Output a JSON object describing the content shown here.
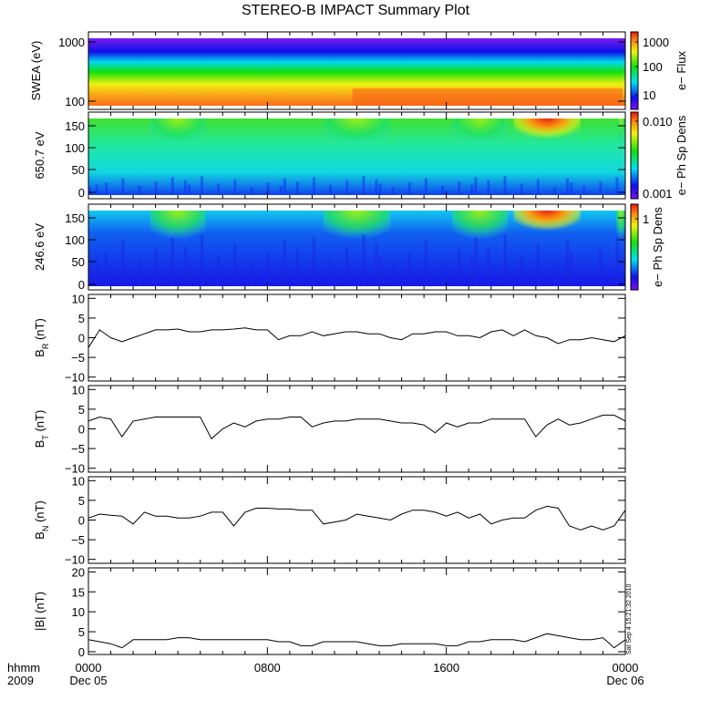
{
  "title": "STEREO-B IMPACT Summary Plot",
  "stamp": "Sat Sep  4 15:21:32 2010",
  "xaxis": {
    "row1_label": "hhmm",
    "row2_label": "2009",
    "ticks": [
      {
        "hour": 0,
        "time": "0000",
        "date": "Dec 05"
      },
      {
        "hour": 8,
        "time": "0800",
        "date": ""
      },
      {
        "hour": 16,
        "time": "1600",
        "date": ""
      },
      {
        "hour": 24,
        "time": "0000",
        "date": "Dec 06"
      }
    ]
  },
  "chart_data": [
    {
      "type": "heatmap",
      "ylabel": "SWEA (eV)",
      "yscale": "log",
      "ylim": [
        90,
        2000
      ],
      "yticks": [
        "1000",
        "100"
      ],
      "colorbar": {
        "label": "e−  Flux",
        "ticks": [
          "1000",
          "100",
          "10"
        ]
      },
      "bands": [
        {
          "level": 0.05,
          "color": "#7a1cf0"
        },
        {
          "level": 0.2,
          "color": "#1010e8"
        },
        {
          "level": 0.35,
          "color": "#00d8f0"
        },
        {
          "level": 0.55,
          "color": "#10e010"
        },
        {
          "level": 0.7,
          "color": "#f0f010"
        },
        {
          "level": 0.85,
          "color": "#f8a018"
        },
        {
          "level": 1.0,
          "color": "#f86018"
        }
      ]
    },
    {
      "type": "heatmap",
      "ylabel": "650.7  eV",
      "ylim": [
        -5,
        180
      ],
      "yticks": [
        "150",
        "100",
        "50",
        "0"
      ],
      "colorbar": {
        "label": "e−  Ph  Sp  Dens",
        "ticks": [
          "0.010",
          "0.001"
        ]
      }
    },
    {
      "type": "heatmap",
      "ylabel": "246.6  eV",
      "ylim": [
        -5,
        180
      ],
      "yticks": [
        "150",
        "100",
        "50",
        "0"
      ],
      "colorbar": {
        "label": "e−  Ph  Sp  Dens",
        "ticks": [
          "1"
        ]
      }
    },
    {
      "type": "line",
      "ylabel_main": "B",
      "ylabel_sub": "R",
      "ylabel_unit": " (nT)",
      "ylim": [
        -11,
        11
      ],
      "yticks": [
        "10",
        "5",
        "0",
        "−5",
        "−10"
      ],
      "ytick_values": [
        10,
        5,
        0,
        -5,
        -10
      ],
      "x_hours_step": 0.5,
      "values": [
        -2.5,
        2,
        0,
        -1,
        0,
        1,
        2,
        2,
        2.2,
        1.5,
        1.5,
        2,
        2,
        2.2,
        2.5,
        2,
        2,
        -0.5,
        0.5,
        0.5,
        1.5,
        0.5,
        1,
        1.5,
        1.5,
        1,
        1,
        0,
        -0.5,
        1,
        1,
        1.5,
        1.5,
        0.5,
        0.5,
        0,
        1.5,
        2,
        0.5,
        2,
        0.5,
        0,
        -1.5,
        -0.5,
        -0.5,
        0,
        -0.5,
        -1,
        0.5
      ]
    },
    {
      "type": "line",
      "ylabel_main": "B",
      "ylabel_sub": "T",
      "ylabel_unit": " (nT)",
      "ylim": [
        -11,
        11
      ],
      "yticks": [
        "10",
        "5",
        "0",
        "−5",
        "−10"
      ],
      "ytick_values": [
        10,
        5,
        0,
        -5,
        -10
      ],
      "x_hours_step": 0.5,
      "values": [
        2,
        3,
        2.5,
        -2,
        2,
        2.5,
        3,
        3,
        3,
        3,
        3,
        -2.5,
        0,
        1.5,
        0.5,
        2,
        2.5,
        2.5,
        3,
        3,
        0.5,
        1.5,
        2,
        2,
        2.5,
        2.5,
        2.5,
        2,
        1.5,
        1.5,
        1,
        -1,
        1.5,
        0.5,
        1.5,
        1.5,
        2.5,
        2.5,
        2.5,
        2.5,
        -2,
        1,
        2.5,
        1,
        1.5,
        2.5,
        3.5,
        3.5,
        2
      ]
    },
    {
      "type": "line",
      "ylabel_main": "B",
      "ylabel_sub": "N",
      "ylabel_unit": " (nT)",
      "ylim": [
        -11,
        11
      ],
      "yticks": [
        "10",
        "5",
        "0",
        "−5",
        "−10"
      ],
      "ytick_values": [
        10,
        5,
        0,
        -5,
        -10
      ],
      "x_hours_step": 0.5,
      "values": [
        0.5,
        1.5,
        1.2,
        1,
        -1,
        2,
        1,
        1,
        0.5,
        0.5,
        1,
        2,
        2,
        -1.5,
        2,
        3,
        3,
        2.8,
        2.8,
        2.5,
        2.5,
        -1,
        -0.5,
        0,
        1.5,
        1,
        0.5,
        0,
        1.5,
        2.5,
        2.5,
        2,
        1,
        2,
        0.5,
        1.5,
        -1,
        0,
        0.5,
        0.5,
        2.5,
        3.5,
        3,
        -1.5,
        -2.5,
        -1.5,
        -2.5,
        -1.5,
        2.5
      ]
    },
    {
      "type": "line",
      "ylabel_main": "|B|",
      "ylabel_sub": "",
      "ylabel_unit": " (nT)",
      "ylim": [
        -0.7,
        21
      ],
      "yticks": [
        "20",
        "15",
        "10",
        "5",
        "0"
      ],
      "ytick_values": [
        20,
        15,
        10,
        5,
        0
      ],
      "x_hours_step": 0.5,
      "values": [
        3,
        2.5,
        2,
        1,
        3,
        3,
        3,
        3,
        3.5,
        3.5,
        3,
        3,
        3,
        3,
        3,
        3,
        3,
        2.5,
        2.5,
        1.5,
        1.5,
        2.5,
        2.5,
        2.5,
        2.5,
        2,
        1.5,
        1.5,
        2,
        2,
        2,
        2,
        1.5,
        1.5,
        2.5,
        2.5,
        3,
        3,
        3,
        2.5,
        3.5,
        4.5,
        4,
        3.5,
        3,
        3,
        3.5,
        1,
        3
      ]
    }
  ]
}
